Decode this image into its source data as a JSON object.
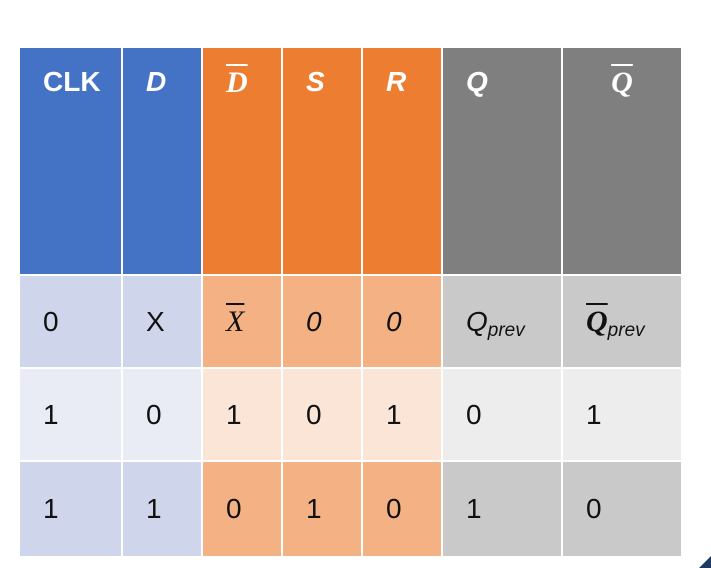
{
  "colors": {
    "blue_header": "#4472c4",
    "orange_header": "#ed7d31",
    "gray_header": "#7f7f7f",
    "blue_row_dark": "#cfd5ea",
    "blue_row_light": "#e9ebf5",
    "orange_row_dark": "#f4b183",
    "orange_row_light": "#fbe5d6",
    "gray_row_dark": "#c9c9c9",
    "gray_row_light": "#ededed"
  },
  "table": {
    "headers": [
      "CLK",
      "D",
      "D",
      "S",
      "R",
      "Q",
      "Q"
    ],
    "rows": [
      {
        "clk": "0",
        "d": "X",
        "d_bar": "X",
        "s": "0",
        "r": "0",
        "q": "Q",
        "q_sub": "prev",
        "q_bar": "Q",
        "q_bar_sub": "prev"
      },
      {
        "clk": "1",
        "d": "0",
        "d_bar": "1",
        "s": "0",
        "r": "1",
        "q": "0",
        "q_bar": "1"
      },
      {
        "clk": "1",
        "d": "1",
        "d_bar": "0",
        "s": "1",
        "r": "0",
        "q": "1",
        "q_bar": "0"
      }
    ]
  }
}
